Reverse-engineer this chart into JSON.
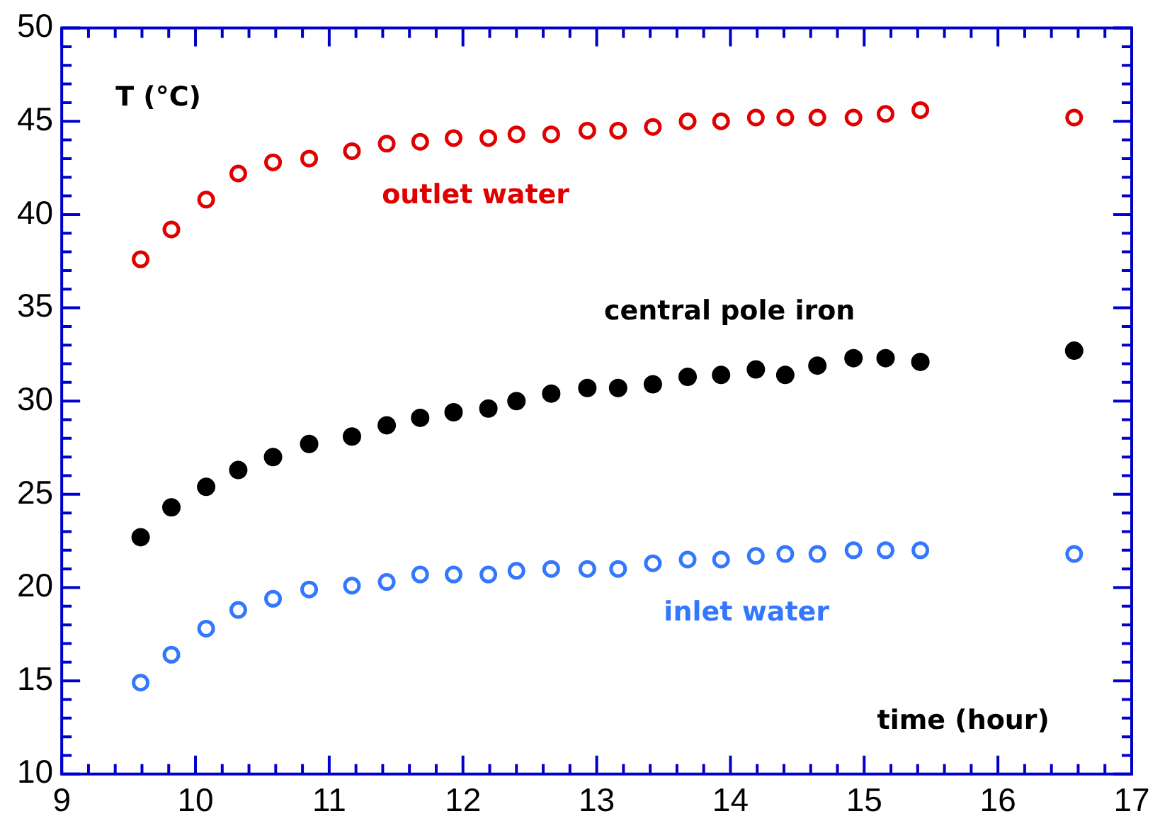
{
  "chart_data": {
    "type": "scatter",
    "xlabel": "time (hour)",
    "ylabel": "T (°C)",
    "x": [
      9.59,
      9.82,
      10.08,
      10.32,
      10.58,
      10.85,
      11.17,
      11.43,
      11.68,
      11.93,
      12.19,
      12.4,
      12.66,
      12.93,
      13.16,
      13.42,
      13.68,
      13.93,
      14.19,
      14.41,
      14.65,
      14.92,
      15.16,
      15.42,
      16.57
    ],
    "series": [
      {
        "name": "outlet water",
        "color": "#e00000",
        "values": [
          37.6,
          39.2,
          40.8,
          42.2,
          42.8,
          43.0,
          43.4,
          43.8,
          43.9,
          44.1,
          44.1,
          44.3,
          44.3,
          44.5,
          44.5,
          44.7,
          45.0,
          45.0,
          45.2,
          45.2,
          45.2,
          45.2,
          45.4,
          45.6,
          45.2
        ]
      },
      {
        "name": "central pole iron",
        "color": "#000000",
        "values": [
          22.7,
          24.3,
          25.4,
          26.3,
          27.0,
          27.7,
          28.1,
          28.7,
          29.1,
          29.4,
          29.6,
          30.0,
          30.4,
          30.7,
          30.7,
          30.9,
          31.3,
          31.4,
          31.7,
          31.4,
          31.9,
          32.3,
          32.3,
          32.1,
          32.7
        ]
      },
      {
        "name": "inlet water",
        "color": "#3377ff",
        "values": [
          14.9,
          16.4,
          17.8,
          18.8,
          19.4,
          19.9,
          20.1,
          20.3,
          20.7,
          20.7,
          20.7,
          20.9,
          21.0,
          21.0,
          21.0,
          21.3,
          21.5,
          21.5,
          21.7,
          21.8,
          21.8,
          22.0,
          22.0,
          22.0,
          21.8
        ]
      }
    ],
    "xlim": [
      9,
      17
    ],
    "xticks": [
      9,
      {
        "value": 9.2,
        "label": null
      },
      {
        "value": 9.4,
        "label": null
      },
      {
        "value": 9.6,
        "label": null
      },
      {
        "value": 9.8,
        "label": null
      },
      10,
      {
        "value": 10.2,
        "label": null
      },
      {
        "value": 10.4,
        "label": null
      },
      {
        "value": 10.6,
        "label": null
      },
      {
        "value": 10.8,
        "label": null
      },
      11,
      {
        "value": 11.2,
        "label": null
      },
      {
        "value": 11.4,
        "label": null
      },
      {
        "value": 11.6,
        "label": null
      },
      {
        "value": 11.8,
        "label": null
      },
      12,
      {
        "value": 12.2,
        "label": null
      },
      {
        "value": 12.4,
        "label": null
      },
      {
        "value": 12.6,
        "label": null
      },
      {
        "value": 12.8,
        "label": null
      },
      13,
      {
        "value": 13.2,
        "label": null
      },
      {
        "value": 13.4,
        "label": null
      },
      {
        "value": 13.6,
        "label": null
      },
      {
        "value": 13.8,
        "label": null
      },
      14,
      {
        "value": 14.2,
        "label": null
      },
      {
        "value": 14.4,
        "label": null
      },
      {
        "value": 14.6,
        "label": null
      },
      {
        "value": 14.8,
        "label": null
      },
      15,
      {
        "value": 15.2,
        "label": null
      },
      {
        "value": 15.4,
        "label": null
      },
      {
        "value": 15.6,
        "label": null
      },
      {
        "value": 15.8,
        "label": null
      },
      16,
      {
        "value": 16.2,
        "label": null
      },
      {
        "value": 16.4,
        "label": null
      },
      {
        "value": 16.6,
        "label": null
      },
      {
        "value": 16.8,
        "label": null
      },
      17
    ],
    "ylim": [
      10,
      50
    ],
    "yticks": [
      10,
      {
        "value": 11,
        "label": null
      },
      {
        "value": 12,
        "label": null
      },
      {
        "value": 13,
        "label": null
      },
      {
        "value": 14,
        "label": null
      },
      15,
      {
        "value": 16,
        "label": null
      },
      {
        "value": 17,
        "label": null
      },
      {
        "value": 18,
        "label": null
      },
      {
        "value": 19,
        "label": null
      },
      20,
      {
        "value": 21,
        "label": null
      },
      {
        "value": 22,
        "label": null
      },
      {
        "value": 23,
        "label": null
      },
      {
        "value": 24,
        "label": null
      },
      25,
      {
        "value": 26,
        "label": null
      },
      {
        "value": 27,
        "label": null
      },
      {
        "value": 28,
        "label": null
      },
      {
        "value": 29,
        "label": null
      },
      30,
      {
        "value": 31,
        "label": null
      },
      {
        "value": 32,
        "label": null
      },
      {
        "value": 33,
        "label": null
      },
      {
        "value": 34,
        "label": null
      },
      35,
      {
        "value": 36,
        "label": null
      },
      {
        "value": 37,
        "label": null
      },
      {
        "value": 38,
        "label": null
      },
      {
        "value": 39,
        "label": null
      },
      40,
      {
        "value": 41,
        "label": null
      },
      {
        "value": 42,
        "label": null
      },
      {
        "value": 43,
        "label": null
      },
      {
        "value": 44,
        "label": null
      },
      45,
      {
        "value": 46,
        "label": null
      },
      {
        "value": 47,
        "label": null
      },
      {
        "value": 48,
        "label": null
      },
      {
        "value": 49,
        "label": null
      },
      50
    ],
    "grid": false,
    "legend": false,
    "marker": "circle"
  }
}
